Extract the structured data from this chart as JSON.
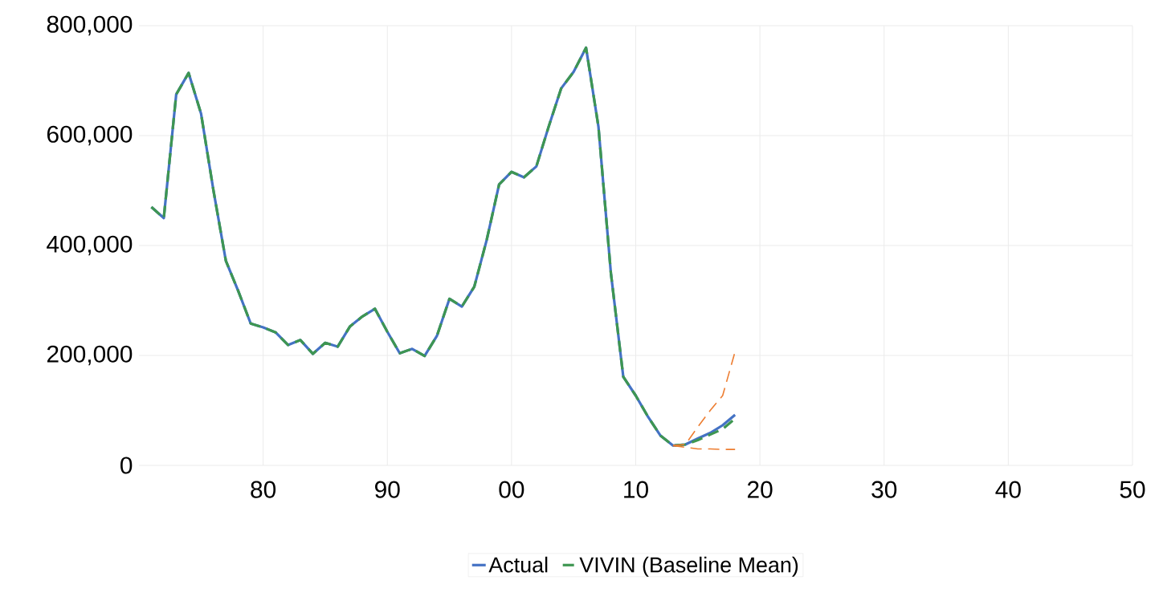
{
  "chart_data": {
    "type": "line",
    "x": [
      1971,
      1972,
      1973,
      1974,
      1975,
      1976,
      1977,
      1978,
      1979,
      1980,
      1981,
      1982,
      1983,
      1984,
      1985,
      1986,
      1987,
      1988,
      1989,
      1990,
      1991,
      1992,
      1993,
      1994,
      1995,
      1996,
      1997,
      1998,
      1999,
      2000,
      2001,
      2002,
      2003,
      2004,
      2005,
      2006,
      2007,
      2008,
      2009,
      2010,
      2011,
      2012,
      2013,
      2014,
      2015,
      2016,
      2017,
      2018
    ],
    "series": [
      {
        "name": "Actual",
        "color": "#4472c4",
        "line_style": "solid",
        "values": [
          470000,
          450000,
          675000,
          714000,
          640000,
          500000,
          372000,
          317000,
          258000,
          251000,
          242000,
          219000,
          228000,
          203000,
          223000,
          216000,
          253000,
          271000,
          285000,
          243000,
          204000,
          212000,
          199000,
          236000,
          303000,
          289000,
          325000,
          410000,
          511000,
          534000,
          524000,
          544000,
          617000,
          686000,
          716000,
          760000,
          616000,
          350000,
          161000,
          127000,
          88000,
          54000,
          36000,
          38000,
          49000,
          59000,
          73000,
          92000
        ]
      },
      {
        "name": "VIVIN (Baseline Mean)",
        "color": "#3e9651",
        "line_style": "dashed",
        "values": [
          470000,
          450000,
          675000,
          714000,
          640000,
          500000,
          372000,
          317000,
          258000,
          251000,
          242000,
          219000,
          228000,
          203000,
          223000,
          216000,
          253000,
          271000,
          285000,
          243000,
          204000,
          212000,
          199000,
          236000,
          303000,
          289000,
          325000,
          410000,
          511000,
          534000,
          524000,
          544000,
          617000,
          686000,
          716000,
          760000,
          616000,
          350000,
          161000,
          127000,
          88000,
          54000,
          36000,
          38000,
          46000,
          56000,
          66000,
          85000
        ]
      },
      {
        "color": "#ed7d31",
        "line_style": "dashed",
        "x": [
          2013,
          2014,
          2015,
          2016,
          2017,
          2018
        ],
        "values": [
          36000,
          38000,
          70000,
          100000,
          127000,
          207000
        ]
      },
      {
        "color": "#ed7d31",
        "line_style": "dashed",
        "x": [
          2013,
          2014,
          2015,
          2016,
          2017,
          2018
        ],
        "values": [
          36000,
          33000,
          30000,
          30000,
          29000,
          29000
        ]
      }
    ],
    "xlim": [
      1970,
      2050
    ],
    "xticks": [
      {
        "value": 1980,
        "label": "80"
      },
      {
        "value": 1990,
        "label": "90"
      },
      {
        "value": 2000,
        "label": "00"
      },
      {
        "value": 2010,
        "label": "10"
      },
      {
        "value": 2020,
        "label": "20"
      },
      {
        "value": 2030,
        "label": "30"
      },
      {
        "value": 2040,
        "label": "40"
      },
      {
        "value": 2050,
        "label": "50"
      }
    ],
    "ylim": [
      0,
      800000
    ],
    "yticks": [
      0,
      {
        "value": 200000,
        "label": "200,000"
      },
      {
        "value": 400000,
        "label": "400,000"
      },
      {
        "value": 600000,
        "label": "600,000"
      },
      {
        "value": 800000,
        "label": "800,000"
      }
    ],
    "grid": true,
    "legend": "bottom",
    "marker": "none"
  }
}
